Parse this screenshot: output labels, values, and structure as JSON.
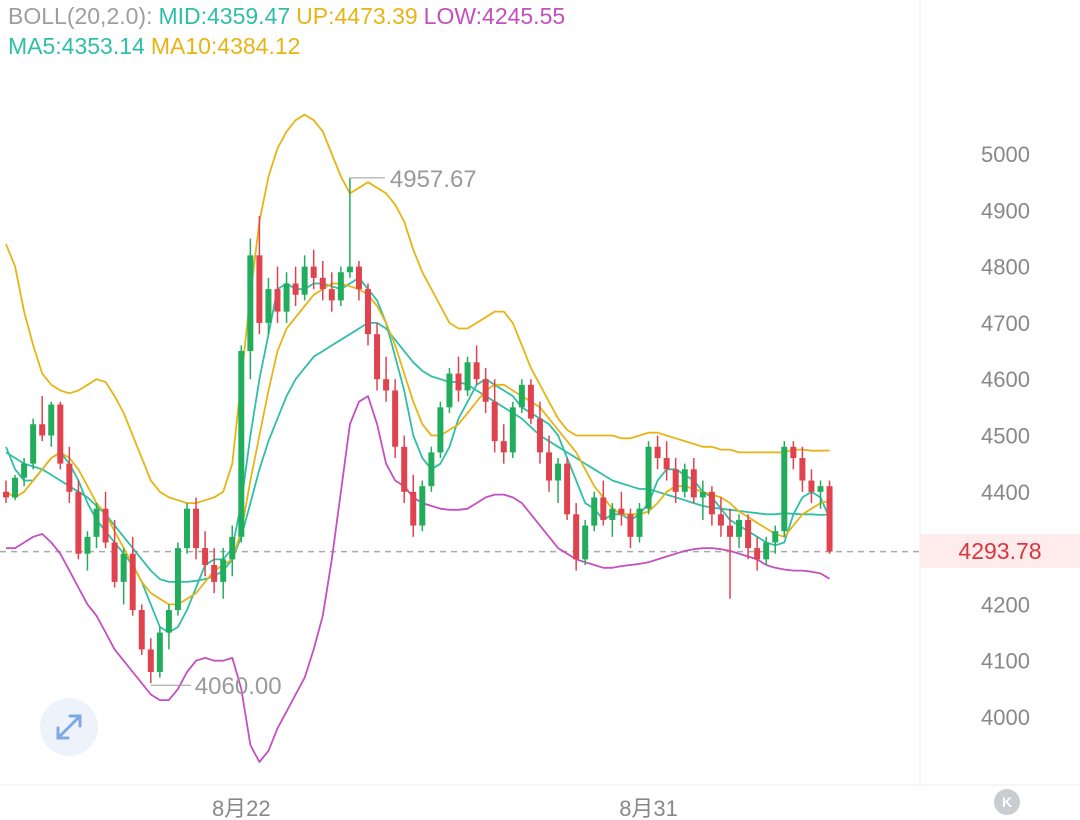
{
  "legend": {
    "boll_label": "BOLL(20,2.0):",
    "mid": "MID:4359.47",
    "up": "UP:4473.39",
    "low": "LOW:4245.55",
    "ma5": "MA5:4353.14",
    "ma10": "MA10:4384.12"
  },
  "colors": {
    "up_candle": "#22ad5c",
    "down_candle": "#e0434e",
    "boll_label": "#9e9e9e",
    "mid": "#2fbfa6",
    "up": "#e7b416",
    "low": "#c44fbf",
    "ma5": "#2fbfa6",
    "ma10": "#e7b416"
  },
  "current_price": "4293.78",
  "high_marker": "4957.67",
  "low_marker": "4060.00",
  "icons": {
    "expand": "expand-arrows-icon",
    "k_button": "k-letter-icon"
  },
  "k_button_label": "K",
  "chart_data": {
    "type": "candlestick",
    "y_axis": {
      "ticks": [
        4000,
        4100,
        4200,
        4300,
        4400,
        4500,
        4600,
        4700,
        4800,
        4900,
        5000
      ],
      "labels": [
        "4000",
        "4100",
        "4200",
        "4300",
        "4400",
        "4500",
        "4600",
        "4700",
        "4800",
        "4900",
        "5000"
      ],
      "range": [
        3920,
        5130
      ]
    },
    "x_axis": {
      "labels": [
        "8月22",
        "8月31"
      ],
      "label_candle_index": [
        26,
        71
      ]
    },
    "current_price": 4293.78,
    "high_annotation": {
      "value": 4957.67,
      "candle_index": 38
    },
    "low_annotation": {
      "value": 4060.0,
      "candle_index": 16
    },
    "candles": [
      [
        4400,
        4420,
        4380,
        4390
      ],
      [
        4390,
        4430,
        4385,
        4425
      ],
      [
        4425,
        4460,
        4410,
        4450
      ],
      [
        4450,
        4530,
        4440,
        4520
      ],
      [
        4520,
        4570,
        4490,
        4500
      ],
      [
        4500,
        4560,
        4480,
        4555
      ],
      [
        4555,
        4560,
        4440,
        4450
      ],
      [
        4450,
        4480,
        4380,
        4400
      ],
      [
        4400,
        4420,
        4280,
        4290
      ],
      [
        4290,
        4330,
        4260,
        4320
      ],
      [
        4320,
        4380,
        4300,
        4370
      ],
      [
        4370,
        4400,
        4300,
        4310
      ],
      [
        4310,
        4350,
        4230,
        4240
      ],
      [
        4240,
        4300,
        4200,
        4290
      ],
      [
        4290,
        4320,
        4180,
        4190
      ],
      [
        4190,
        4200,
        4110,
        4120
      ],
      [
        4120,
        4140,
        4060,
        4080
      ],
      [
        4080,
        4160,
        4070,
        4150
      ],
      [
        4150,
        4200,
        4120,
        4190
      ],
      [
        4190,
        4310,
        4180,
        4300
      ],
      [
        4300,
        4380,
        4290,
        4370
      ],
      [
        4370,
        4390,
        4280,
        4300
      ],
      [
        4300,
        4330,
        4250,
        4270
      ],
      [
        4270,
        4300,
        4220,
        4240
      ],
      [
        4240,
        4300,
        4210,
        4280
      ],
      [
        4280,
        4340,
        4250,
        4320
      ],
      [
        4320,
        4660,
        4310,
        4650
      ],
      [
        4650,
        4850,
        4600,
        4820
      ],
      [
        4820,
        4890,
        4680,
        4700
      ],
      [
        4700,
        4780,
        4680,
        4760
      ],
      [
        4760,
        4800,
        4700,
        4720
      ],
      [
        4720,
        4790,
        4700,
        4770
      ],
      [
        4770,
        4800,
        4730,
        4750
      ],
      [
        4750,
        4820,
        4740,
        4800
      ],
      [
        4800,
        4830,
        4760,
        4780
      ],
      [
        4780,
        4810,
        4740,
        4760
      ],
      [
        4760,
        4790,
        4720,
        4740
      ],
      [
        4740,
        4800,
        4730,
        4790
      ],
      [
        4790,
        4957.67,
        4780,
        4800
      ],
      [
        4800,
        4810,
        4740,
        4760
      ],
      [
        4760,
        4770,
        4660,
        4680
      ],
      [
        4680,
        4700,
        4580,
        4600
      ],
      [
        4600,
        4640,
        4560,
        4580
      ],
      [
        4580,
        4600,
        4460,
        4480
      ],
      [
        4480,
        4500,
        4380,
        4400
      ],
      [
        4400,
        4430,
        4320,
        4340
      ],
      [
        4340,
        4420,
        4330,
        4410
      ],
      [
        4410,
        4480,
        4400,
        4470
      ],
      [
        4470,
        4560,
        4460,
        4550
      ],
      [
        4550,
        4620,
        4540,
        4610
      ],
      [
        4610,
        4640,
        4560,
        4580
      ],
      [
        4580,
        4640,
        4570,
        4630
      ],
      [
        4630,
        4660,
        4590,
        4600
      ],
      [
        4600,
        4620,
        4540,
        4560
      ],
      [
        4560,
        4600,
        4470,
        4490
      ],
      [
        4490,
        4520,
        4450,
        4470
      ],
      [
        4470,
        4560,
        4460,
        4550
      ],
      [
        4550,
        4600,
        4540,
        4590
      ],
      [
        4590,
        4600,
        4520,
        4530
      ],
      [
        4530,
        4560,
        4450,
        4470
      ],
      [
        4470,
        4500,
        4400,
        4420
      ],
      [
        4420,
        4460,
        4380,
        4450
      ],
      [
        4450,
        4460,
        4350,
        4360
      ],
      [
        4360,
        4380,
        4260,
        4280
      ],
      [
        4280,
        4350,
        4270,
        4340
      ],
      [
        4340,
        4400,
        4330,
        4390
      ],
      [
        4390,
        4420,
        4340,
        4350
      ],
      [
        4350,
        4380,
        4320,
        4370
      ],
      [
        4370,
        4400,
        4340,
        4360
      ],
      [
        4360,
        4370,
        4300,
        4320
      ],
      [
        4320,
        4380,
        4310,
        4370
      ],
      [
        4370,
        4490,
        4360,
        4480
      ],
      [
        4480,
        4500,
        4440,
        4460
      ],
      [
        4460,
        4490,
        4420,
        4440
      ],
      [
        4440,
        4460,
        4380,
        4400
      ],
      [
        4400,
        4450,
        4390,
        4440
      ],
      [
        4440,
        4460,
        4380,
        4390
      ],
      [
        4390,
        4420,
        4350,
        4400
      ],
      [
        4400,
        4410,
        4340,
        4360
      ],
      [
        4360,
        4390,
        4320,
        4340
      ],
      [
        4340,
        4370,
        4210,
        4320
      ],
      [
        4320,
        4360,
        4300,
        4350
      ],
      [
        4350,
        4360,
        4280,
        4300
      ],
      [
        4300,
        4320,
        4260,
        4280
      ],
      [
        4280,
        4320,
        4270,
        4310
      ],
      [
        4310,
        4340,
        4290,
        4330
      ],
      [
        4330,
        4490,
        4320,
        4480
      ],
      [
        4480,
        4490,
        4440,
        4460
      ],
      [
        4460,
        4480,
        4400,
        4420
      ],
      [
        4420,
        4440,
        4380,
        4400
      ],
      [
        4400,
        4420,
        4370,
        4410
      ],
      [
        4410,
        4420,
        4290,
        4293.78
      ]
    ],
    "series": [
      {
        "name": "UP",
        "values": [
          4840,
          4800,
          4720,
          4660,
          4610,
          4590,
          4580,
          4575,
          4580,
          4590,
          4600,
          4595,
          4570,
          4540,
          4500,
          4460,
          4420,
          4400,
          4390,
          4385,
          4380,
          4380,
          4385,
          4390,
          4400,
          4450,
          4600,
          4750,
          4880,
          4960,
          5010,
          5040,
          5060,
          5070,
          5060,
          5040,
          5000,
          4960,
          4930,
          4940,
          4950,
          4940,
          4930,
          4910,
          4880,
          4830,
          4790,
          4760,
          4730,
          4700,
          4690,
          4690,
          4700,
          4710,
          4720,
          4720,
          4700,
          4660,
          4620,
          4590,
          4560,
          4530,
          4510,
          4500,
          4500,
          4500,
          4500,
          4500,
          4495,
          4495,
          4500,
          4505,
          4505,
          4500,
          4495,
          4490,
          4485,
          4480,
          4480,
          4475,
          4475,
          4470,
          4470,
          4470,
          4470,
          4470,
          4470,
          4475,
          4475,
          4473,
          4473,
          4473.39
        ]
      },
      {
        "name": "MID",
        "values": [
          4470,
          4460,
          4450,
          4445,
          4440,
          4430,
          4420,
          4410,
          4400,
          4390,
          4375,
          4360,
          4340,
          4320,
          4300,
          4280,
          4260,
          4245,
          4240,
          4240,
          4240,
          4242,
          4245,
          4250,
          4260,
          4280,
          4320,
          4380,
          4440,
          4490,
          4530,
          4570,
          4600,
          4620,
          4640,
          4650,
          4660,
          4670,
          4680,
          4690,
          4700,
          4700,
          4690,
          4670,
          4650,
          4630,
          4615,
          4605,
          4600,
          4595,
          4595,
          4590,
          4580,
          4570,
          4560,
          4550,
          4540,
          4530,
          4515,
          4500,
          4490,
          4480,
          4470,
          4460,
          4450,
          4440,
          4430,
          4420,
          4415,
          4410,
          4405,
          4405,
          4400,
          4395,
          4390,
          4385,
          4380,
          4375,
          4372,
          4370,
          4368,
          4366,
          4364,
          4362,
          4360,
          4360,
          4362,
          4361,
          4360,
          4360,
          4359,
          4359.47
        ]
      },
      {
        "name": "LOW",
        "values": [
          4300,
          4300,
          4310,
          4320,
          4325,
          4310,
          4290,
          4260,
          4230,
          4200,
          4180,
          4150,
          4120,
          4100,
          4080,
          4060,
          4040,
          4030,
          4030,
          4050,
          4080,
          4100,
          4105,
          4100,
          4100,
          4105,
          4050,
          3950,
          3920,
          3940,
          3980,
          4010,
          4040,
          4070,
          4120,
          4180,
          4280,
          4400,
          4520,
          4560,
          4570,
          4520,
          4450,
          4420,
          4410,
          4390,
          4380,
          4375,
          4370,
          4368,
          4368,
          4370,
          4380,
          4390,
          4395,
          4395,
          4390,
          4380,
          4360,
          4340,
          4320,
          4300,
          4290,
          4280,
          4275,
          4270,
          4265,
          4265,
          4268,
          4270,
          4272,
          4275,
          4280,
          4285,
          4290,
          4295,
          4298,
          4300,
          4300,
          4298,
          4295,
          4290,
          4285,
          4280,
          4270,
          4265,
          4262,
          4260,
          4260,
          4258,
          4255,
          4245.55
        ]
      },
      {
        "name": "MA5",
        "values": [
          4480,
          4440,
          4420,
          4420,
          4440,
          4460,
          4470,
          4450,
          4420,
          4380,
          4350,
          4330,
          4310,
          4290,
          4270,
          4240,
          4200,
          4160,
          4150,
          4160,
          4190,
          4230,
          4270,
          4280,
          4280,
          4300,
          4380,
          4500,
          4600,
          4680,
          4760,
          4770,
          4760,
          4760,
          4770,
          4770,
          4765,
          4760,
          4770,
          4780,
          4760,
          4740,
          4700,
          4640,
          4580,
          4500,
          4460,
          4440,
          4450,
          4480,
          4530,
          4560,
          4590,
          4600,
          4590,
          4580,
          4570,
          4550,
          4540,
          4530,
          4520,
          4500,
          4460,
          4420,
          4380,
          4370,
          4350,
          4360,
          4360,
          4350,
          4360,
          4380,
          4420,
          4440,
          4440,
          4430,
          4420,
          4400,
          4390,
          4370,
          4350,
          4340,
          4330,
          4320,
          4310,
          4305,
          4310,
          4360,
          4390,
          4400,
          4390,
          4353.14
        ]
      },
      {
        "name": "MA10",
        "values": [
          4400,
          4390,
          4400,
          4420,
          4440,
          4460,
          4470,
          4460,
          4440,
          4410,
          4380,
          4360,
          4330,
          4300,
          4270,
          4240,
          4220,
          4210,
          4200,
          4200,
          4210,
          4220,
          4240,
          4260,
          4270,
          4280,
          4330,
          4420,
          4500,
          4580,
          4650,
          4690,
          4710,
          4730,
          4750,
          4760,
          4770,
          4770,
          4765,
          4760,
          4750,
          4730,
          4700,
          4660,
          4610,
          4560,
          4520,
          4500,
          4500,
          4510,
          4520,
          4540,
          4560,
          4580,
          4590,
          4590,
          4580,
          4570,
          4560,
          4550,
          4530,
          4510,
          4490,
          4470,
          4440,
          4410,
          4390,
          4370,
          4360,
          4360,
          4360,
          4365,
          4380,
          4400,
          4410,
          4410,
          4405,
          4400,
          4395,
          4390,
          4380,
          4365,
          4355,
          4345,
          4335,
          4325,
          4320,
          4340,
          4360,
          4370,
          4380,
          4384.12
        ]
      }
    ]
  }
}
